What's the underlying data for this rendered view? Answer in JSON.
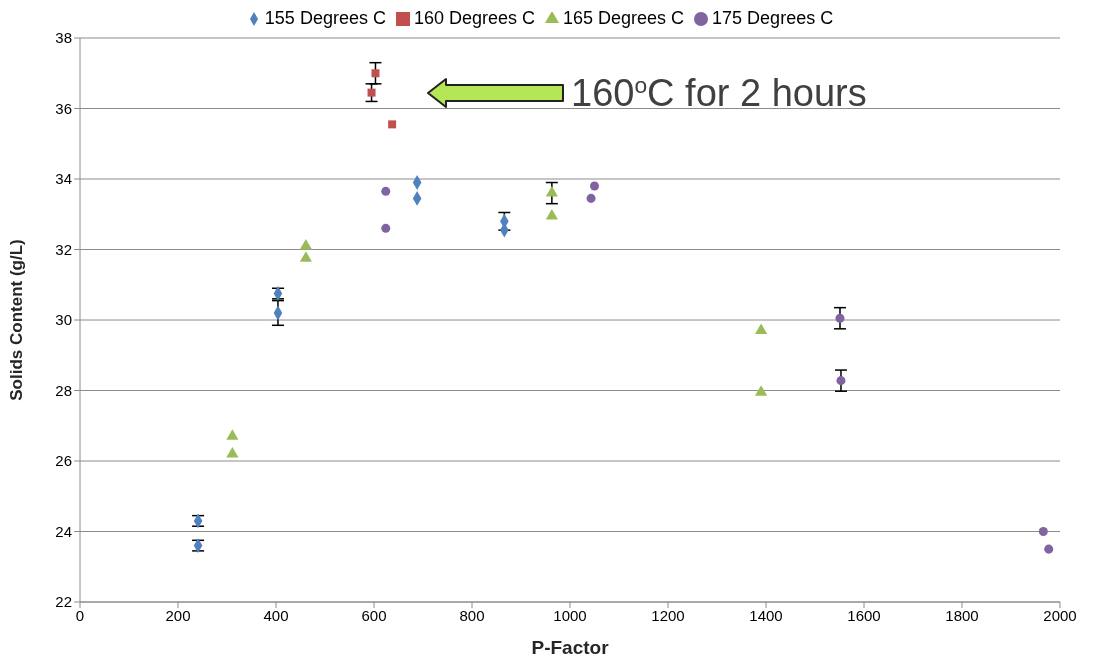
{
  "chart_data": {
    "type": "scatter",
    "xlabel": "P-Factor",
    "ylabel": "Solids Content (g/L)",
    "xlim": [
      0,
      2000
    ],
    "xticks": [
      0,
      200,
      400,
      600,
      800,
      1000,
      1200,
      1400,
      1600,
      1800,
      2000
    ],
    "ylim": [
      22,
      38
    ],
    "yticks": [
      22,
      24,
      26,
      28,
      30,
      32,
      34,
      36,
      38
    ],
    "grid": "y",
    "legend": "top",
    "series": [
      {
        "name": "155 Degrees C",
        "color": "#4f81bd",
        "marker": "diamond",
        "x": [
          241,
          241,
          404,
          404,
          688,
          688,
          866,
          866
        ],
        "values": [
          24.3,
          23.6,
          30.75,
          30.2,
          33.9,
          33.45,
          32.8,
          32.55
        ],
        "errors": [
          0.15,
          0.15,
          0.15,
          0.35,
          null,
          null,
          0.25,
          null
        ]
      },
      {
        "name": "160 Degrees C",
        "color": "#c0504d",
        "marker": "square",
        "x": [
          603,
          595,
          637
        ],
        "values": [
          37.0,
          36.45,
          35.55
        ],
        "errors": [
          0.3,
          0.25,
          null
        ]
      },
      {
        "name": "165 Degrees C",
        "color": "#9bbb59",
        "marker": "triangle",
        "x": [
          311,
          311,
          461,
          461,
          963,
          963,
          1390,
          1390
        ],
        "values": [
          26.7,
          26.2,
          32.1,
          31.75,
          33.6,
          32.95,
          29.7,
          27.95
        ],
        "errors": [
          null,
          null,
          null,
          null,
          0.3,
          null,
          null,
          null
        ]
      },
      {
        "name": "175 Degrees C",
        "color": "#8064a2",
        "marker": "circle",
        "x": [
          624,
          624,
          1050,
          1043,
          1551,
          1553,
          1966,
          1977
        ],
        "values": [
          33.65,
          32.6,
          33.8,
          33.45,
          30.05,
          28.28,
          24.0,
          23.5
        ],
        "errors": [
          null,
          null,
          null,
          null,
          0.3,
          0.3,
          null,
          null
        ]
      }
    ],
    "annotations": [
      "160$^{o}$C for 2 hours"
    ]
  }
}
